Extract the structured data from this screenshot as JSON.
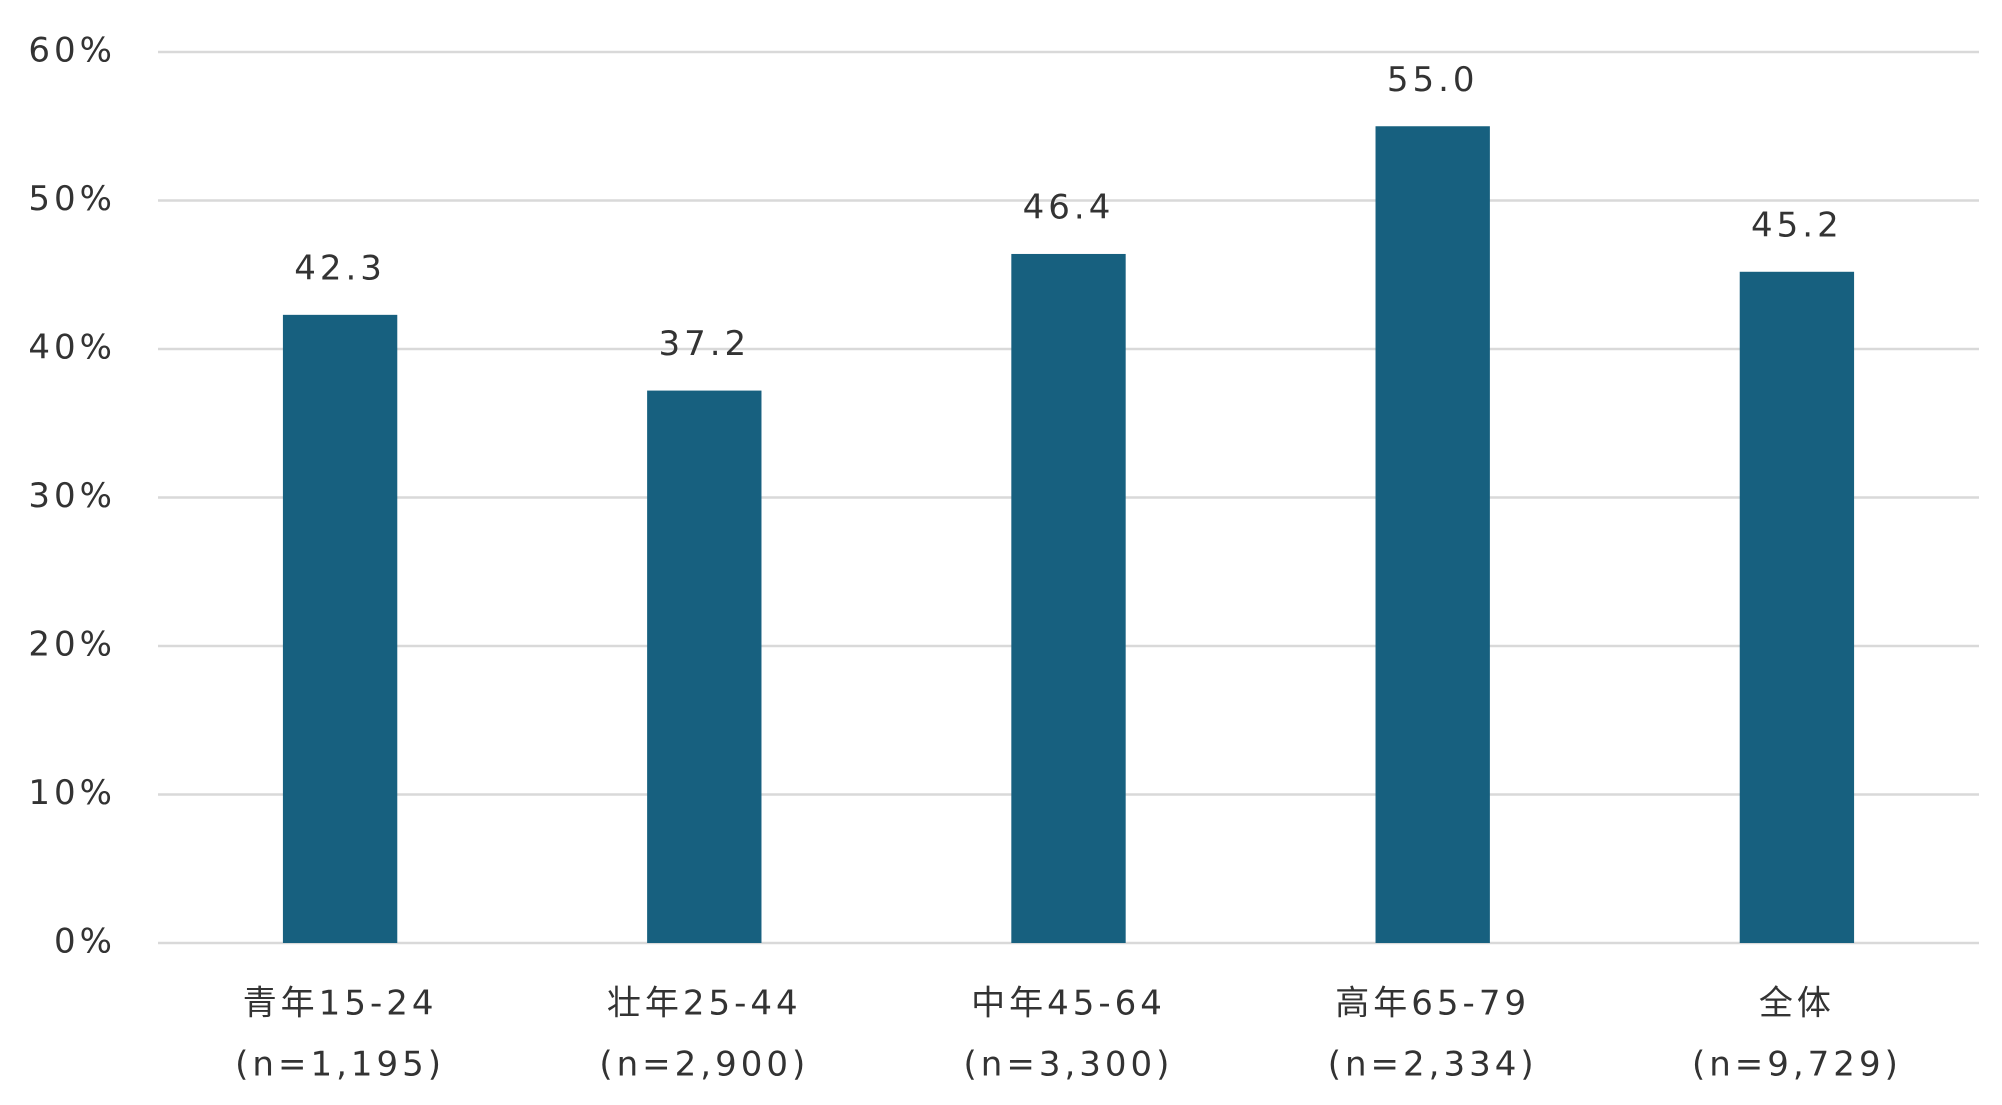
{
  "chart_data": {
    "type": "bar",
    "categories": [
      "青年15-24",
      "壮年25-44",
      "中年45-64",
      "高年65-79",
      "全体"
    ],
    "category_notes": [
      "(n=1,195)",
      "(n=2,900)",
      "(n=3,300)",
      "(n=2,334)",
      "(n=9,729)"
    ],
    "values": [
      42.3,
      37.2,
      46.4,
      55,
      45.2
    ],
    "value_labels": [
      "42.3",
      "37.2",
      "46.4",
      "55.0",
      "45.2"
    ],
    "color": "#17607f",
    "ylim": [
      0,
      60
    ],
    "yticks": [
      {
        "value": 0,
        "label": "0%"
      },
      {
        "value": 10,
        "label": "10%"
      },
      {
        "value": 20,
        "label": "20%"
      },
      {
        "value": 30,
        "label": "30%"
      },
      {
        "value": 40,
        "label": "40%"
      },
      {
        "value": 50,
        "label": "50%"
      },
      {
        "value": 60,
        "label": "60%"
      }
    ],
    "grid": true
  }
}
